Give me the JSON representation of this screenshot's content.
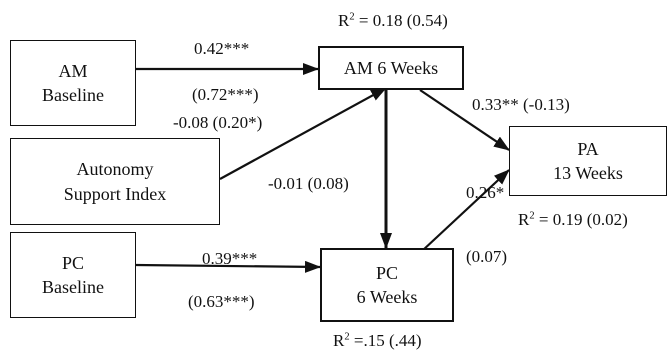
{
  "nodes": {
    "am_baseline": {
      "line1": "AM",
      "line2": "Baseline"
    },
    "autonomy_support_index": {
      "line1": "Autonomy",
      "line2": "Support Index"
    },
    "pc_baseline": {
      "line1": "PC",
      "line2": "Baseline"
    },
    "am_6_weeks": {
      "line1": "AM 6 Weeks"
    },
    "pc_6_weeks": {
      "line1": "PC",
      "line2": "6 Weeks"
    },
    "pa_13_weeks": {
      "line1": "PA",
      "line2": "13 Weeks"
    }
  },
  "r_squared": {
    "am_6_weeks": {
      "base": "R",
      "sup": "2",
      "rest": " = 0.18 (0.54)"
    },
    "pa_13_weeks": {
      "base": "R",
      "sup": "2",
      "rest": " = 0.19 (0.02)"
    },
    "pc_6_weeks": {
      "base": "R",
      "sup": "2",
      "rest": " =.15 (.44)"
    }
  },
  "paths": [
    {
      "id": "am_baseline_to_am_6_weeks",
      "line1": "0.42***",
      "line2": "(0.72***)"
    },
    {
      "id": "autonomy_to_am_6_weeks",
      "line1": "-0.08 (0.20*)"
    },
    {
      "id": "am_6_weeks_to_pc_6_weeks",
      "line1": "-0.01 (0.08)"
    },
    {
      "id": "am_6_weeks_to_pa_13_weeks",
      "line1": "0.33** (-0.13)"
    },
    {
      "id": "pc_baseline_to_pc_6_weeks",
      "line1": "0.39***",
      "line2": "(0.63***)"
    },
    {
      "id": "pc_6_weeks_to_pa_13_weeks",
      "line1": "0.26*",
      "line2": "(0.07)"
    }
  ]
}
